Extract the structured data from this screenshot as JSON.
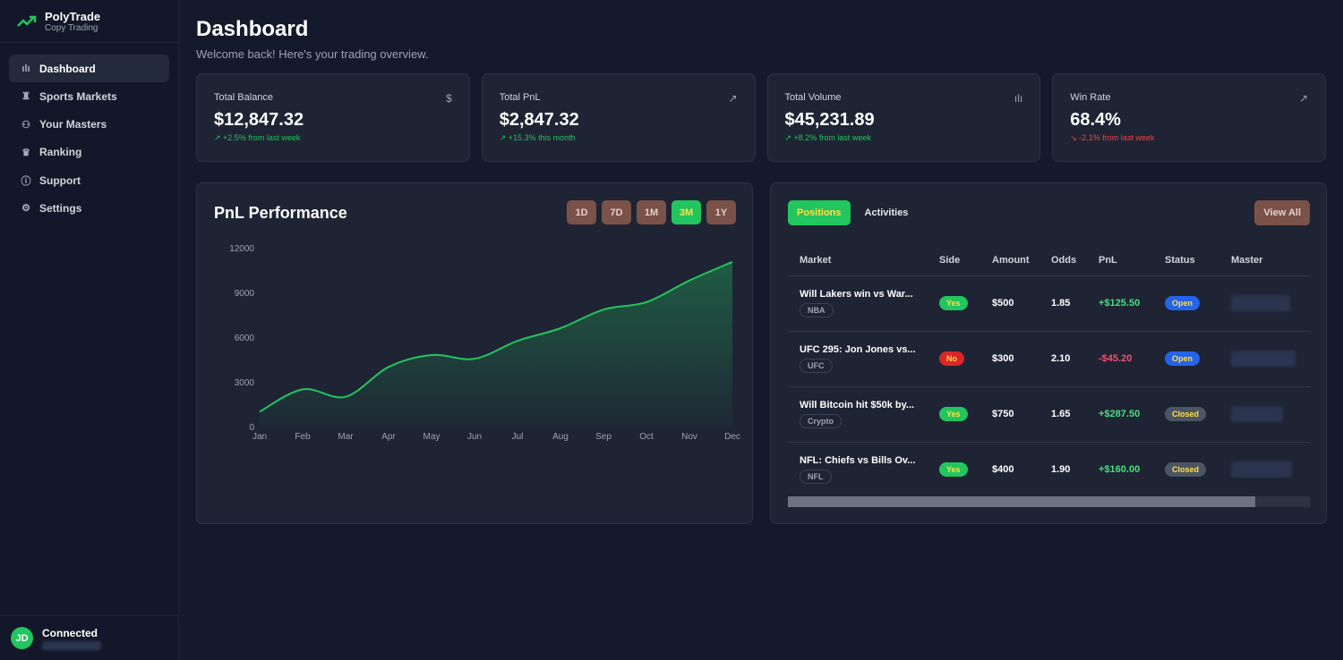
{
  "brand": {
    "name": "PolyTrade",
    "tagline": "Copy Trading"
  },
  "nav": [
    {
      "label": "Dashboard",
      "icon": "bar-chart-icon"
    },
    {
      "label": "Sports Markets",
      "icon": "trophy-icon"
    },
    {
      "label": "Your Masters",
      "icon": "users-icon"
    },
    {
      "label": "Ranking",
      "icon": "crown-icon"
    },
    {
      "label": "Support",
      "icon": "help-circle-icon"
    },
    {
      "label": "Settings",
      "icon": "gear-icon"
    }
  ],
  "user": {
    "initials": "JD",
    "status": "Connected"
  },
  "header": {
    "title": "Dashboard",
    "subtitle": "Welcome back! Here's your trading overview."
  },
  "stats": [
    {
      "label": "Total Balance",
      "value": "$12,847.32",
      "change": "+2.5% from last week",
      "trend": "up",
      "icon": "dollar-icon"
    },
    {
      "label": "Total PnL",
      "value": "$2,847.32",
      "change": "+15.3% this month",
      "trend": "up",
      "icon": "trending-up-icon"
    },
    {
      "label": "Total Volume",
      "value": "$45,231.89",
      "change": "+8.2% from last week",
      "trend": "up",
      "icon": "bar-chart-icon"
    },
    {
      "label": "Win Rate",
      "value": "68.4%",
      "change": "-2.1% from last week",
      "trend": "down",
      "icon": "trending-up-icon"
    }
  ],
  "pnl": {
    "title": "PnL Performance",
    "ranges": [
      "1D",
      "7D",
      "1M",
      "3M",
      "1Y"
    ],
    "active_range": "3M"
  },
  "chart_data": {
    "type": "area",
    "title": "PnL Performance",
    "categories": [
      "Jan",
      "Feb",
      "Mar",
      "Apr",
      "May",
      "Jun",
      "Jul",
      "Aug",
      "Sep",
      "Oct",
      "Nov",
      "Dec"
    ],
    "values": [
      1000,
      2500,
      2000,
      4000,
      4800,
      4550,
      5750,
      6600,
      7850,
      8350,
      9800,
      11050
    ],
    "yticks": [
      0,
      3000,
      6000,
      9000,
      12000
    ],
    "ylim": [
      0,
      12000
    ],
    "color": "#22c55e"
  },
  "positions": {
    "tabs": [
      "Positions",
      "Activities"
    ],
    "view_all": "View All",
    "columns": [
      "Market",
      "Side",
      "Amount",
      "Odds",
      "PnL",
      "Status",
      "Master"
    ],
    "rows": [
      {
        "market": "Will Lakers win vs War...",
        "category": "NBA",
        "side": "Yes",
        "amount": "$500",
        "odds": "1.85",
        "pnl": "+$125.50",
        "status": "Open"
      },
      {
        "market": "UFC 295: Jon Jones vs...",
        "category": "UFC",
        "side": "No",
        "amount": "$300",
        "odds": "2.10",
        "pnl": "-$45.20",
        "status": "Open"
      },
      {
        "market": "Will Bitcoin hit $50k by...",
        "category": "Crypto",
        "side": "Yes",
        "amount": "$750",
        "odds": "1.65",
        "pnl": "+$287.50",
        "status": "Closed"
      },
      {
        "market": "NFL: Chiefs vs Bills Ov...",
        "category": "NFL",
        "side": "Yes",
        "amount": "$400",
        "odds": "1.90",
        "pnl": "+$160.00",
        "status": "Closed"
      }
    ]
  }
}
